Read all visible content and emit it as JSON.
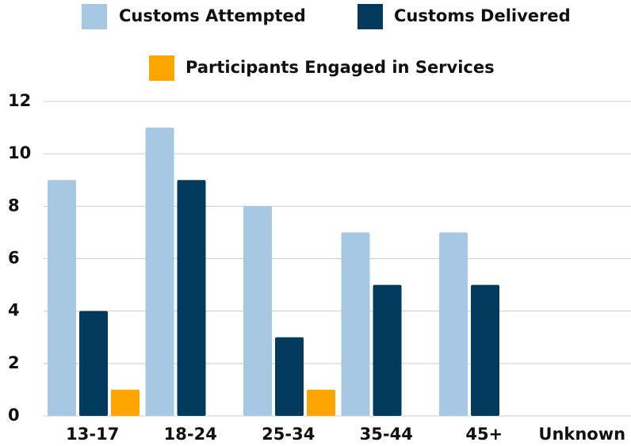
{
  "chart_data": {
    "type": "bar",
    "categories": [
      "13-17",
      "18-24",
      "25-34",
      "35-44",
      "45+",
      "Unknown"
    ],
    "series": [
      {
        "name": "Customs Attempted",
        "color": "#a7c8e3",
        "values": [
          9,
          11,
          8,
          7,
          7,
          0
        ]
      },
      {
        "name": "Customs Delivered",
        "color": "#003a5c",
        "values": [
          4,
          9,
          3,
          5,
          5,
          0
        ]
      },
      {
        "name": "Participants Engaged in Services",
        "color": "#ffa500",
        "values": [
          1,
          0,
          1,
          0,
          0,
          0
        ]
      }
    ],
    "ylim": [
      0,
      12
    ],
    "yticks": [
      0,
      2,
      4,
      6,
      8,
      10,
      12
    ],
    "grid": true
  }
}
